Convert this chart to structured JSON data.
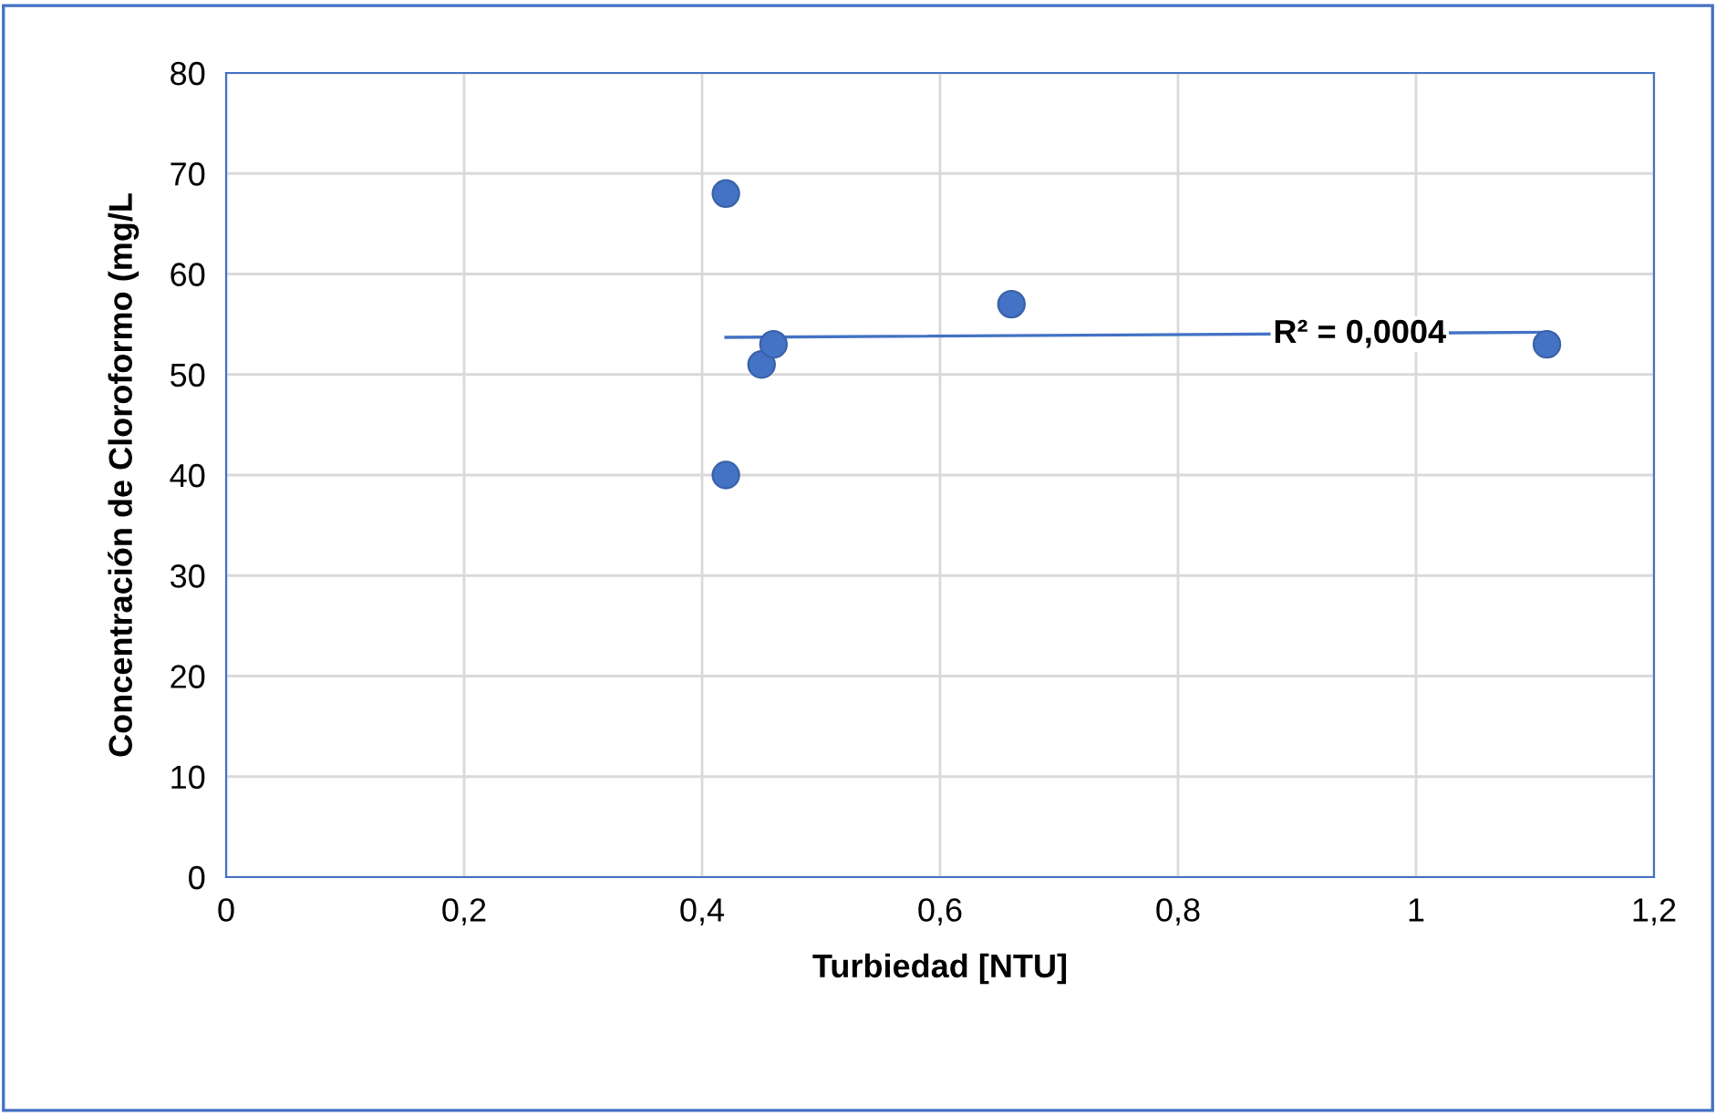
{
  "chart_data": {
    "type": "scatter",
    "xlabel": "Turbiedad [NTU]",
    "ylabel": "Concentración de Cloroformo (mg/L",
    "series": [
      {
        "color": "#4472c4",
        "x": [
          0.42,
          0.42,
          0.45,
          0.46,
          0.66,
          1.11
        ],
        "values": [
          68,
          40,
          51,
          53,
          57,
          53
        ],
        "marker": "circle"
      },
      {
        "type": "line",
        "color": "#4472c4",
        "x": [
          0.42,
          1.11
        ],
        "values": [
          53.7,
          54.2
        ],
        "marker": "none",
        "line_style": "solid"
      }
    ],
    "annotations": [
      {
        "text": "R² = 0,0004",
        "x": 0.88,
        "y": 54
      }
    ],
    "xlim": [
      0,
      1.2
    ],
    "xticks": [
      0,
      {
        "value": 0.2,
        "label": "0,2"
      },
      {
        "value": 0.4,
        "label": "0,4"
      },
      {
        "value": 0.6,
        "label": "0,6"
      },
      {
        "value": 0.8,
        "label": "0,8"
      },
      1,
      {
        "value": 1.2,
        "label": "1,2"
      }
    ],
    "ylim": [
      0,
      80
    ],
    "yticks": [
      0,
      10,
      20,
      30,
      40,
      50,
      60,
      70,
      80
    ],
    "grid": true,
    "legend": false
  }
}
